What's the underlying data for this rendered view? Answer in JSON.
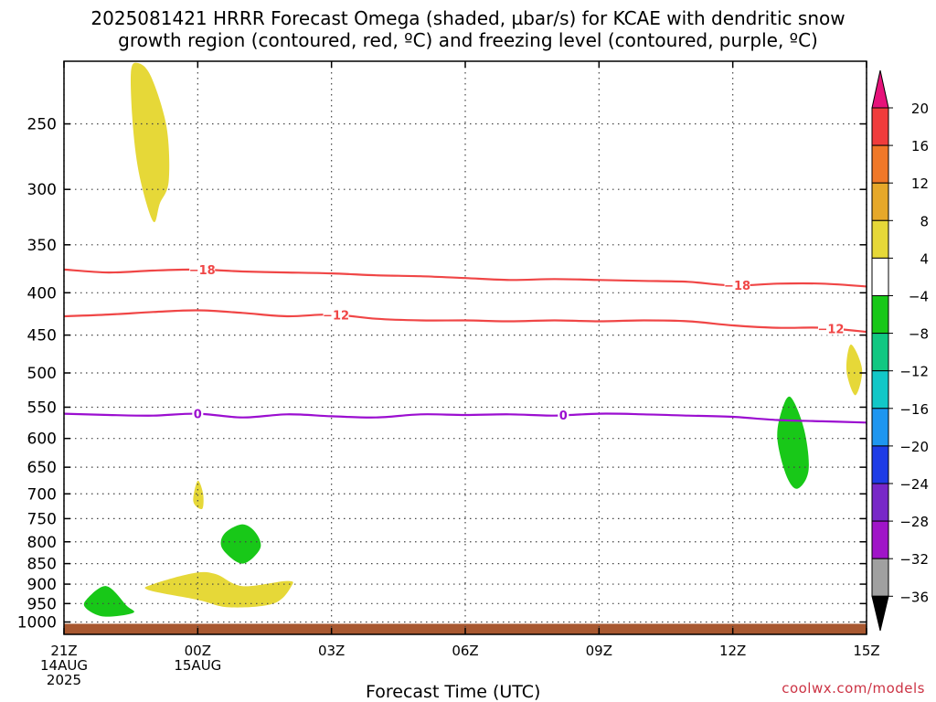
{
  "title": {
    "line1": "2025081421 HRRR Forecast Omega (shaded, µbar/s) for KCAE with dendritic snow",
    "line2": "growth region (contoured, red, ºC) and freezing level (contoured, purple, ºC)"
  },
  "credit": "coolwx.com/models",
  "chart_data": {
    "type": "contour",
    "title": "2025081421 HRRR Forecast Omega (shaded, µbar/s) for KCAE with dendritic snow growth region (contoured, red, ºC) and freezing level (contoured, purple, ºC)",
    "xlabel": "Forecast Time (UTC)",
    "ylabel": "",
    "x_range_hours": [
      0,
      18
    ],
    "y_scale": "log-pressure, inverted",
    "y_range_hPa": [
      1035,
      210
    ],
    "grid": "dotted",
    "x_ticks": [
      {
        "hour": 0,
        "lines": [
          "21Z",
          "14AUG",
          "2025"
        ]
      },
      {
        "hour": 3,
        "lines": [
          "00Z",
          "15AUG"
        ]
      },
      {
        "hour": 6,
        "lines": [
          "03Z"
        ]
      },
      {
        "hour": 9,
        "lines": [
          "06Z"
        ]
      },
      {
        "hour": 12,
        "lines": [
          "09Z"
        ]
      },
      {
        "hour": 15,
        "lines": [
          "12Z"
        ]
      },
      {
        "hour": 18,
        "lines": [
          "15Z"
        ]
      }
    ],
    "y_ticks": [
      250,
      300,
      350,
      400,
      450,
      500,
      550,
      600,
      650,
      700,
      750,
      800,
      850,
      900,
      950,
      1000
    ],
    "colorbar": {
      "labels": [
        "20",
        "16",
        "12",
        "8",
        "4",
        "−4",
        "−8",
        "−12",
        "−16",
        "−20",
        "−24",
        "−28",
        "−32",
        "−36"
      ],
      "colors": [
        "#f03c3c",
        "#f07828",
        "#e6a82a",
        "#e6d838",
        "#ffffff",
        "#18c818",
        "#12c882",
        "#12c8c8",
        "#1e96f0",
        "#1e3ce6",
        "#7828c8",
        "#a014c8",
        "#a0a0a0"
      ],
      "top_arrow_color": "#e6127a",
      "bottom_arrow_color": "#000000"
    },
    "contours": [
      {
        "name": "-18",
        "color": "#f04646",
        "labels": [
          {
            "hour": 3.1,
            "text": "−18"
          },
          {
            "hour": 15.1,
            "text": "−18"
          }
        ],
        "points": [
          [
            0,
            375
          ],
          [
            1,
            378
          ],
          [
            2,
            376
          ],
          [
            3,
            375
          ],
          [
            4,
            377
          ],
          [
            5,
            378
          ],
          [
            6,
            379
          ],
          [
            7,
            381
          ],
          [
            8,
            382
          ],
          [
            9,
            384
          ],
          [
            10,
            386
          ],
          [
            11,
            385
          ],
          [
            12,
            386
          ],
          [
            13,
            387
          ],
          [
            14,
            388
          ],
          [
            15,
            392
          ],
          [
            16,
            390
          ],
          [
            17,
            390
          ],
          [
            18,
            393
          ]
        ]
      },
      {
        "name": "-12",
        "color": "#f04646",
        "labels": [
          {
            "hour": 6.1,
            "text": "−12"
          },
          {
            "hour": 17.2,
            "text": "−12"
          }
        ],
        "points": [
          [
            0,
            427
          ],
          [
            1,
            425
          ],
          [
            2,
            422
          ],
          [
            3,
            420
          ],
          [
            4,
            423
          ],
          [
            5,
            427
          ],
          [
            6,
            425
          ],
          [
            7,
            430
          ],
          [
            8,
            432
          ],
          [
            9,
            432
          ],
          [
            10,
            433
          ],
          [
            11,
            432
          ],
          [
            12,
            433
          ],
          [
            13,
            432
          ],
          [
            14,
            433
          ],
          [
            15,
            438
          ],
          [
            16,
            441
          ],
          [
            17,
            441
          ],
          [
            18,
            446
          ]
        ]
      },
      {
        "name": "0",
        "color": "#9b0ed0",
        "labels": [
          {
            "hour": 3.0,
            "text": "0"
          },
          {
            "hour": 11.2,
            "text": "0"
          }
        ],
        "points": [
          [
            0,
            560
          ],
          [
            1,
            562
          ],
          [
            2,
            563
          ],
          [
            3,
            560
          ],
          [
            4,
            566
          ],
          [
            5,
            561
          ],
          [
            6,
            564
          ],
          [
            7,
            566
          ],
          [
            8,
            561
          ],
          [
            9,
            562
          ],
          [
            10,
            561
          ],
          [
            11,
            563
          ],
          [
            12,
            560
          ],
          [
            13,
            561
          ],
          [
            14,
            563
          ],
          [
            15,
            565
          ],
          [
            16,
            570
          ],
          [
            17,
            572
          ],
          [
            18,
            574
          ]
        ]
      }
    ],
    "omega_regions": [
      {
        "value_range": "4 to 8",
        "color": "#e6d838",
        "outline": [
          [
            1.5,
            217
          ],
          [
            1.65,
            211
          ],
          [
            1.95,
            219
          ],
          [
            2.3,
            252
          ],
          [
            2.35,
            293
          ],
          [
            2.15,
            312
          ],
          [
            2.0,
            328
          ],
          [
            1.7,
            290
          ],
          [
            1.55,
            253
          ]
        ]
      },
      {
        "value_range": "4 to 8",
        "color": "#e6d838",
        "outline": [
          [
            2.0,
            900
          ],
          [
            2.9,
            873
          ],
          [
            3.4,
            875
          ],
          [
            4.0,
            905
          ],
          [
            5.0,
            892
          ],
          [
            5.1,
            905
          ],
          [
            4.7,
            950
          ],
          [
            3.7,
            960
          ],
          [
            3.0,
            940
          ],
          [
            1.9,
            915
          ]
        ]
      },
      {
        "value_range": "4 to 8",
        "color": "#e6d838",
        "outline": [
          [
            3.0,
            675
          ],
          [
            3.12,
            700
          ],
          [
            3.1,
            730
          ],
          [
            2.9,
            715
          ]
        ]
      },
      {
        "value_range": "4 to 8",
        "color": "#e6d838",
        "outline": [
          [
            17.65,
            462
          ],
          [
            17.9,
            495
          ],
          [
            17.75,
            532
          ],
          [
            17.55,
            497
          ]
        ]
      },
      {
        "value_range": "-8 to -4",
        "color": "#18c818",
        "outline": [
          [
            3.6,
            782
          ],
          [
            4.0,
            762
          ],
          [
            4.3,
            780
          ],
          [
            4.4,
            815
          ],
          [
            4.0,
            850
          ],
          [
            3.55,
            815
          ]
        ]
      },
      {
        "value_range": "-8 to -4",
        "color": "#18c818",
        "outline": [
          [
            0.5,
            940
          ],
          [
            0.95,
            905
          ],
          [
            1.4,
            955
          ],
          [
            1.55,
            975
          ],
          [
            0.9,
            985
          ],
          [
            0.5,
            963
          ]
        ]
      },
      {
        "value_range": "-8 to -4",
        "color": "#18c818",
        "outline": [
          [
            16.1,
            555
          ],
          [
            16.3,
            535
          ],
          [
            16.6,
            585
          ],
          [
            16.7,
            655
          ],
          [
            16.45,
            690
          ],
          [
            16.2,
            665
          ],
          [
            16.0,
            600
          ]
        ]
      }
    ],
    "terrain": {
      "color": "#a85830",
      "top_hPa": 1005
    }
  }
}
